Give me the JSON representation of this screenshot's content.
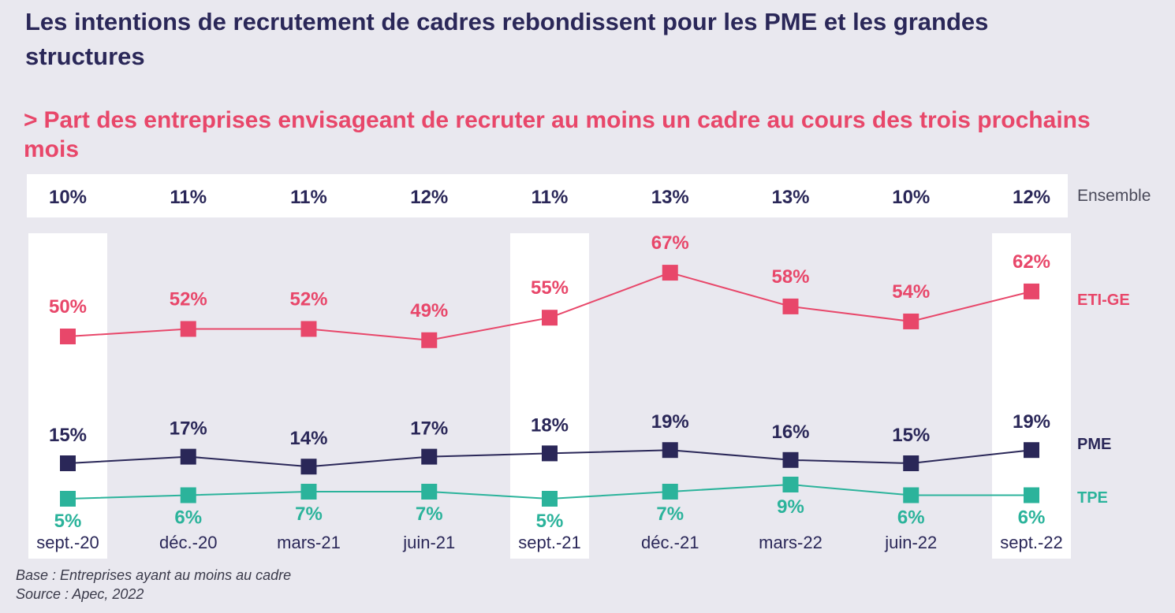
{
  "title": "Les intentions de recrutement de cadres rebondissent pour les PME et les grandes structures",
  "subtitle": {
    "arrow": ">",
    "text": "Part des entreprises envisageant de recruter au moins un cadre au cours des trois prochains mois"
  },
  "footer": {
    "base": "Base : Entreprises ayant au moins au cadre",
    "source": "Source : Apec, 2022"
  },
  "colors": {
    "background": "#e9e8ef",
    "eti_ge": "#e8476a",
    "pme": "#2a2758",
    "tpe": "#2bb39b",
    "highlight": "#ffffff"
  },
  "chart_data": {
    "type": "line",
    "categories": [
      "sept.-20",
      "déc.-20",
      "mars-21",
      "juin-21",
      "sept.-21",
      "déc.-21",
      "mars-22",
      "juin-22",
      "sept.-22"
    ],
    "ensemble": {
      "name": "Ensemble",
      "values": [
        10,
        11,
        11,
        12,
        11,
        13,
        13,
        10,
        12
      ],
      "labels": [
        "10%",
        "11%",
        "11%",
        "12%",
        "11%",
        "13%",
        "13%",
        "10%",
        "12%"
      ]
    },
    "series": [
      {
        "name": "ETI-GE",
        "color": "#e8476a",
        "values": [
          50,
          52,
          52,
          49,
          55,
          67,
          58,
          54,
          62
        ],
        "labels": [
          "50%",
          "52%",
          "52%",
          "49%",
          "55%",
          "67%",
          "58%",
          "54%",
          "62%"
        ]
      },
      {
        "name": "PME",
        "color": "#2a2758",
        "values": [
          15,
          17,
          14,
          17,
          18,
          19,
          16,
          15,
          19
        ],
        "labels": [
          "15%",
          "17%",
          "14%",
          "17%",
          "18%",
          "19%",
          "16%",
          "15%",
          "19%"
        ]
      },
      {
        "name": "TPE",
        "color": "#2bb39b",
        "values": [
          5,
          6,
          7,
          7,
          5,
          7,
          9,
          6,
          6
        ],
        "labels": [
          "5%",
          "6%",
          "7%",
          "7%",
          "5%",
          "7%",
          "9%",
          "6%",
          "6%"
        ]
      }
    ],
    "highlighted_categories": [
      "sept.-20",
      "sept.-21",
      "sept.-22"
    ],
    "unit": "%",
    "grid": false,
    "legend": "right, inline series labels"
  }
}
